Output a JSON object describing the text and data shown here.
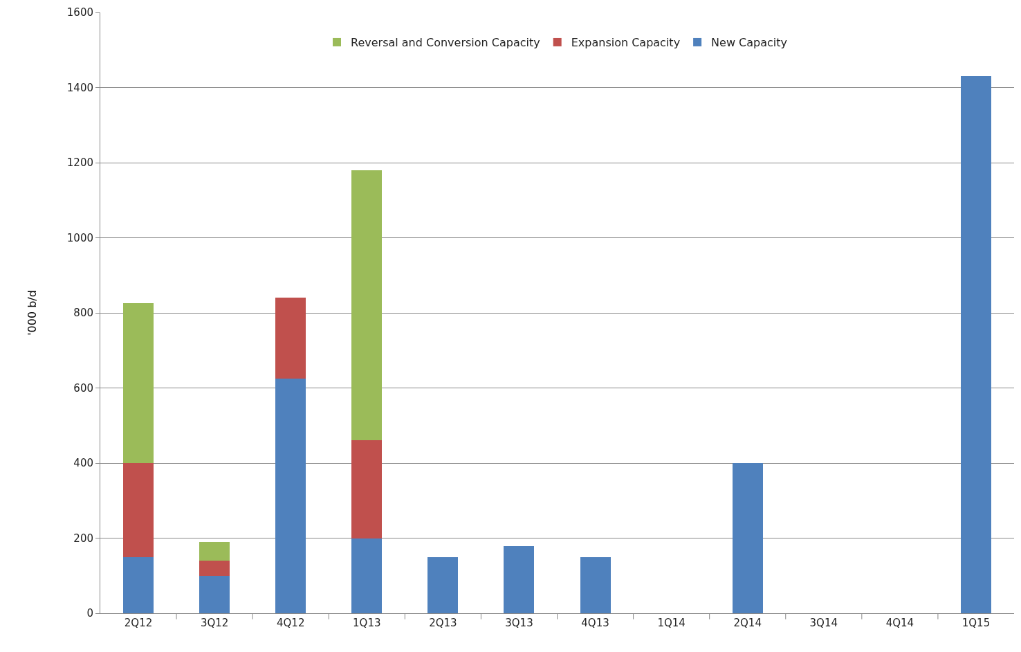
{
  "chart_data": {
    "type": "bar",
    "stacked": true,
    "ylabel": "'000 b/d",
    "categories": [
      "2Q12",
      "3Q12",
      "4Q12",
      "1Q13",
      "2Q13",
      "3Q13",
      "4Q13",
      "1Q14",
      "2Q14",
      "3Q14",
      "4Q14",
      "1Q15"
    ],
    "series": [
      {
        "name": "New Capacity",
        "color": "#4f81bd",
        "values": [
          150,
          100,
          625,
          200,
          150,
          178,
          150,
          null,
          400,
          null,
          null,
          1430
        ]
      },
      {
        "name": "Expansion Capacity",
        "color": "#c0504d",
        "values": [
          250,
          40,
          215,
          260,
          null,
          null,
          null,
          null,
          null,
          null,
          null,
          null
        ]
      },
      {
        "name": "Reversal and Conversion Capacity",
        "color": "#9bbb59",
        "values": [
          425,
          50,
          null,
          720,
          null,
          null,
          null,
          null,
          null,
          null,
          null,
          null
        ]
      }
    ],
    "ylim": [
      0,
      1600
    ],
    "yticks": [
      0,
      200,
      400,
      600,
      800,
      1000,
      1200,
      1400,
      1600
    ],
    "grid": "y",
    "legend": "top"
  }
}
